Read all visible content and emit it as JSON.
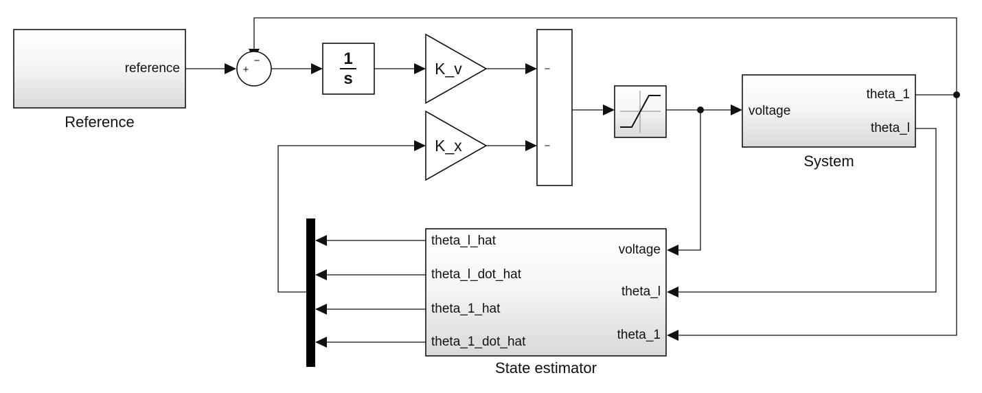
{
  "blocks": {
    "reference": {
      "name": "Reference",
      "outport": "reference"
    },
    "sum": {
      "plus": "+",
      "minus": "−"
    },
    "integrator": {
      "numerator": "1",
      "denominator": "s"
    },
    "gain_v": {
      "label": "K_v"
    },
    "gain_x": {
      "label": "K_x"
    },
    "mux_sum": {
      "input_top": "−",
      "input_bottom": "−"
    },
    "system": {
      "name": "System",
      "inport": "voltage",
      "outport_1": "theta_1",
      "outport_2": "theta_l"
    },
    "state_estimator": {
      "name": "State estimator",
      "inports": [
        "voltage",
        "theta_l",
        "theta_1"
      ],
      "outports": [
        "theta_l_hat",
        "theta_l_dot_hat",
        "theta_1_hat",
        "theta_1_dot_hat"
      ]
    }
  }
}
